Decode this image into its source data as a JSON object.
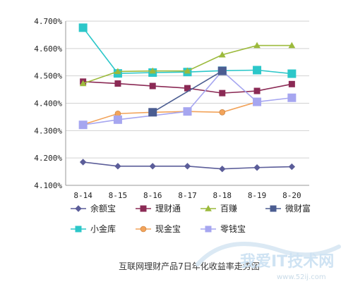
{
  "chart_data": {
    "type": "line",
    "title": "互联网理财产品7日年化收益率走势图",
    "categories": [
      "8-14",
      "8-15",
      "8-16",
      "8-17",
      "8-18",
      "8-19",
      "8-20"
    ],
    "ylim": [
      4.1,
      4.7
    ],
    "yticks": [
      "4.100%",
      "4.200%",
      "4.300%",
      "4.400%",
      "4.500%",
      "4.600%",
      "4.700%"
    ],
    "ytick_values": [
      4.1,
      4.2,
      4.3,
      4.4,
      4.5,
      4.6,
      4.7
    ],
    "grid": "horizontal",
    "legend_position": "bottom",
    "series": [
      {
        "name": "余额宝",
        "color": "#5b5d99",
        "marker": "diamond",
        "values": [
          4.185,
          4.17,
          4.17,
          4.17,
          4.16,
          4.165,
          4.168
        ]
      },
      {
        "name": "理财通",
        "color": "#8b2a55",
        "marker": "square",
        "values": [
          4.479,
          4.472,
          4.463,
          4.455,
          4.437,
          4.445,
          4.47
        ]
      },
      {
        "name": "百赚",
        "color": "#9cba3c",
        "marker": "triangle",
        "values": [
          4.472,
          4.516,
          4.518,
          4.518,
          4.577,
          4.611,
          4.611
        ]
      },
      {
        "name": "微财富",
        "color": "#4b5d91",
        "marker": "square",
        "values": [
          null,
          null,
          4.367,
          null,
          4.518,
          null,
          null
        ]
      },
      {
        "name": "小金库",
        "color": "#2cc7c9",
        "marker": "square",
        "values": [
          4.676,
          4.509,
          4.512,
          4.514,
          4.519,
          4.521,
          4.508
        ]
      },
      {
        "name": "现金宝",
        "color": "#f2a35a",
        "marker": "circle",
        "values": [
          4.322,
          4.362,
          4.367,
          4.37,
          4.367,
          4.405,
          null
        ]
      },
      {
        "name": "零钱宝",
        "color": "#a6a6f0",
        "marker": "square",
        "values": [
          4.321,
          4.34,
          null,
          4.37,
          4.518,
          4.405,
          4.42
        ]
      }
    ]
  },
  "watermark": {
    "title": "我爱IT技术网",
    "url": "www.52ij.com"
  }
}
